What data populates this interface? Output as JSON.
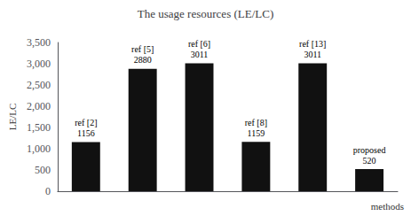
{
  "chart_data": {
    "type": "bar",
    "title": "The usage resources (LE/LC)",
    "xlabel": "methods",
    "ylabel": "LE/LC",
    "categories": [
      "ref [2]",
      "ref [5]",
      "ref [6]",
      "ref [8]",
      "ref [13]",
      "proposed"
    ],
    "values": [
      1156,
      2880,
      3011,
      1159,
      3011,
      520
    ],
    "color": "#111111",
    "ylim": [
      0,
      3500
    ],
    "yticks": [
      0,
      500,
      1000,
      1500,
      2000,
      2500,
      3000,
      3500
    ],
    "grid": false,
    "data_labels": true,
    "tick_labels": "y"
  }
}
